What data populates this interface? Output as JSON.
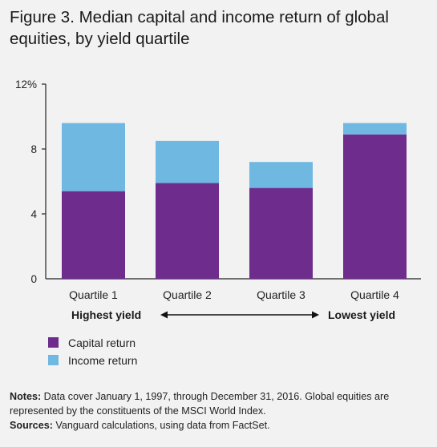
{
  "figure": {
    "title": "Figure 3. Median capital and income return of global equities, by yield quartile"
  },
  "chart_data": {
    "type": "bar",
    "stacked": true,
    "categories": [
      "Quartile 1",
      "Quartile 2",
      "Quartile 3",
      "Quartile 4"
    ],
    "series": [
      {
        "name": "Capital return",
        "color": "#6e2c8c",
        "values": [
          5.4,
          5.9,
          5.6,
          8.9
        ]
      },
      {
        "name": "Income return",
        "color": "#6fb8e2",
        "values": [
          4.2,
          2.6,
          1.6,
          0.7
        ]
      }
    ],
    "ylim": [
      0,
      12
    ],
    "yticks": [
      0,
      4,
      8,
      12
    ],
    "ytick_labels": [
      "0",
      "4",
      "8",
      "12%"
    ],
    "grid": false,
    "legend": "bottom-left",
    "yield_labels": {
      "left": "Highest yield",
      "right": "Lowest yield"
    }
  },
  "notes": {
    "notes_label": "Notes:",
    "notes_text": " Data cover January 1, 1997, through December 31, 2016. Global equities are represented by the constituents of the MSCI World Index.",
    "sources_label": "Sources:",
    "sources_text": " Vanguard calculations, using data from FactSet."
  }
}
